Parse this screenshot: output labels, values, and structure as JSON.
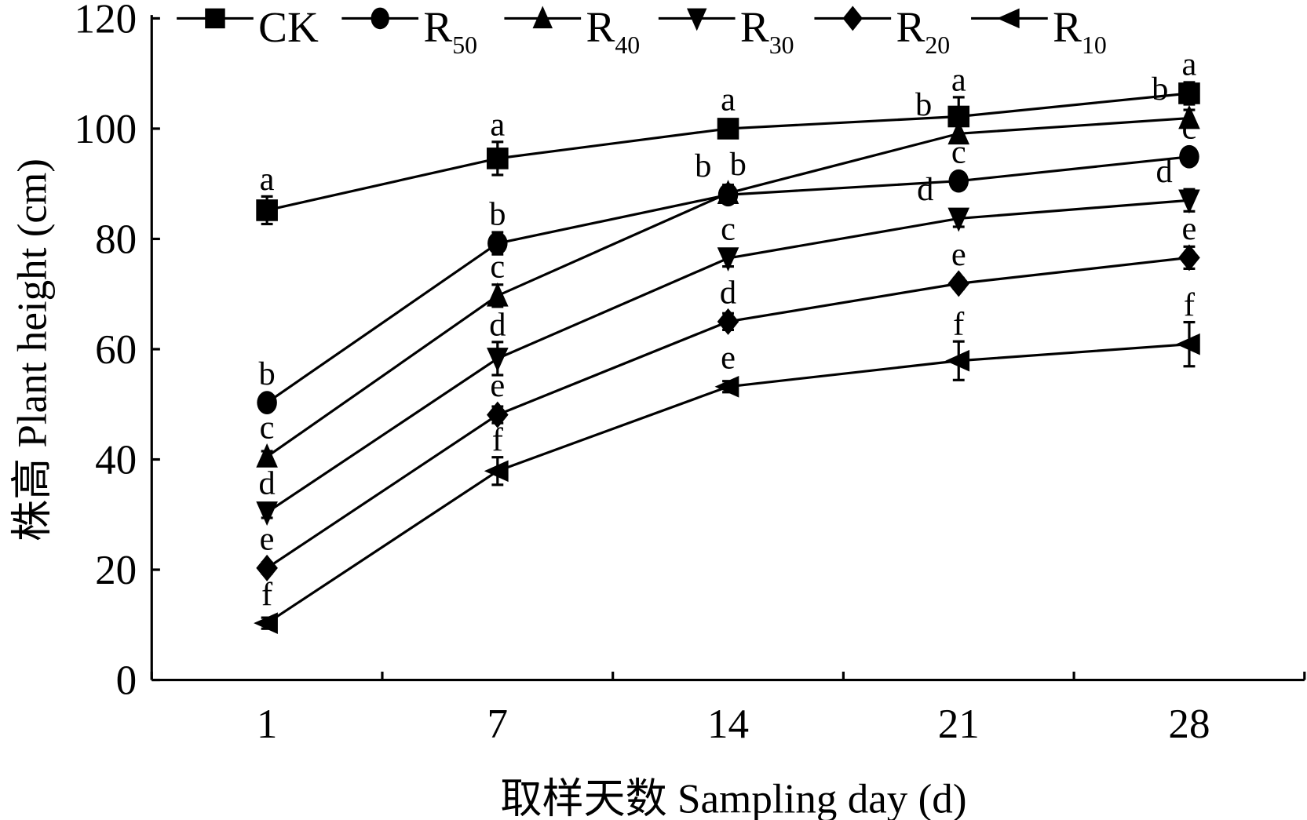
{
  "chart_data": {
    "type": "line",
    "title": "",
    "xlabel": "取样天数 Sampling day (d)",
    "ylabel": "株高 Plant height (cm)",
    "categories": [
      "1",
      "7",
      "14",
      "21",
      "28"
    ],
    "ylim": [
      0,
      120
    ],
    "yticks": [
      "0",
      "20",
      "40",
      "60",
      "80",
      "100",
      "120"
    ],
    "grid": false,
    "legend_position": "top",
    "series": [
      {
        "name": "CK",
        "sub": "",
        "marker": "square",
        "values": [
          85.2,
          94.6,
          100.0,
          102.2,
          106.4
        ],
        "errors": [
          2.5,
          3.0,
          1.0,
          3.5,
          2.0
        ],
        "letters": [
          "a",
          "a",
          "a",
          "a",
          "a"
        ]
      },
      {
        "name": "R",
        "sub": "50",
        "marker": "circle",
        "values": [
          50.3,
          79.2,
          88.0,
          90.5,
          94.9
        ],
        "errors": [
          1.0,
          2.0,
          1.5,
          1.5,
          1.5
        ],
        "letters": [
          "b",
          "b",
          "b",
          "c",
          "c"
        ]
      },
      {
        "name": "R",
        "sub": "40",
        "marker": "triangle-up",
        "values": [
          40.5,
          69.7,
          88.3,
          99.1,
          101.9
        ],
        "errors": [
          1.0,
          2.0,
          1.5,
          1.5,
          1.5
        ],
        "letters": [
          "c",
          "c",
          "b",
          "b",
          "b"
        ]
      },
      {
        "name": "R",
        "sub": "30",
        "marker": "triangle-down",
        "values": [
          30.4,
          58.3,
          76.5,
          83.7,
          87.0
        ],
        "errors": [
          1.0,
          3.0,
          1.5,
          1.5,
          2.0
        ],
        "letters": [
          "d",
          "d",
          "c",
          "d",
          "d"
        ]
      },
      {
        "name": "R",
        "sub": "20",
        "marker": "diamond",
        "values": [
          20.3,
          48.1,
          65.0,
          71.9,
          76.6
        ],
        "errors": [
          1.0,
          1.5,
          1.5,
          1.0,
          2.0
        ],
        "letters": [
          "e",
          "e",
          "d",
          "e",
          "e"
        ]
      },
      {
        "name": "R",
        "sub": "10",
        "marker": "triangle-left",
        "values": [
          10.3,
          37.9,
          53.2,
          57.9,
          60.9
        ],
        "errors": [
          1.0,
          2.5,
          1.0,
          3.5,
          4.0
        ],
        "letters": [
          "f",
          "f",
          "e",
          "f",
          "f"
        ]
      }
    ]
  }
}
